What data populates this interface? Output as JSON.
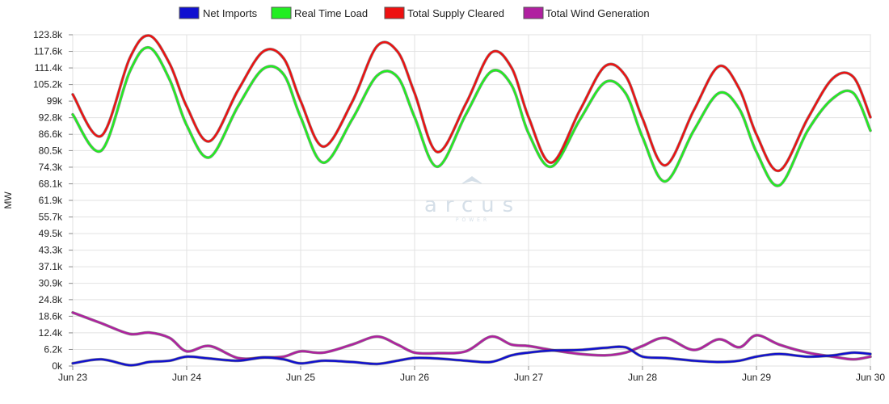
{
  "watermark": {
    "brand": "arcus",
    "sub": "POWER"
  },
  "chart_data": {
    "type": "line",
    "ylabel": "MW",
    "xlabel": "",
    "ylim": [
      0,
      123800
    ],
    "yticks": [
      "0k",
      "6.2k",
      "12.4k",
      "18.6k",
      "24.8k",
      "30.9k",
      "37.1k",
      "43.3k",
      "49.5k",
      "55.7k",
      "61.9k",
      "68.1k",
      "74.3k",
      "80.5k",
      "86.6k",
      "92.8k",
      "99k",
      "105.2k",
      "111.4k",
      "117.6k",
      "123.8k"
    ],
    "ytick_values": [
      0,
      6200,
      12400,
      18600,
      24800,
      30900,
      37100,
      43300,
      49500,
      55700,
      61900,
      68100,
      74300,
      80500,
      86600,
      92800,
      99000,
      105200,
      111400,
      117600,
      123800
    ],
    "xticks": [
      "Jun 23",
      "Jun 24",
      "Jun 25",
      "Jun 26",
      "Jun 27",
      "Jun 28",
      "Jun 29",
      "Jun 30"
    ],
    "xlim_days": [
      23,
      30
    ],
    "grid": true,
    "legend_position": "top-center",
    "x": [
      23.0,
      23.25,
      23.5,
      23.67,
      23.85,
      24.0,
      24.2,
      24.45,
      24.67,
      24.85,
      25.0,
      25.2,
      25.45,
      25.67,
      25.85,
      26.0,
      26.2,
      26.45,
      26.67,
      26.85,
      27.0,
      27.2,
      27.45,
      27.67,
      27.85,
      28.0,
      28.2,
      28.45,
      28.67,
      28.85,
      29.0,
      29.2,
      29.45,
      29.67,
      29.85,
      30.0
    ],
    "series": [
      {
        "name": "Net Imports",
        "color": "#1010d0",
        "values": [
          1000,
          2500,
          300,
          1500,
          2000,
          3500,
          2800,
          2000,
          3200,
          2500,
          1000,
          2000,
          1500,
          800,
          2000,
          3000,
          2800,
          2000,
          1500,
          4000,
          5000,
          5800,
          6000,
          6800,
          7000,
          3500,
          3000,
          2000,
          1500,
          2000,
          3500,
          4500,
          3500,
          4000,
          5000,
          4500
        ]
      },
      {
        "name": "Real Time Load",
        "color": "#22ee22",
        "values": [
          94000,
          80500,
          110000,
          119000,
          107000,
          90000,
          78000,
          97000,
          111000,
          109000,
          93000,
          76000,
          92000,
          108500,
          108000,
          93000,
          74500,
          94000,
          110000,
          105000,
          87000,
          74500,
          92000,
          106000,
          102000,
          85500,
          69000,
          88000,
          102000,
          96000,
          80000,
          67500,
          88000,
          100000,
          102000,
          88000
        ]
      },
      {
        "name": "Total Supply Cleared",
        "color": "#ee1111",
        "values": [
          101500,
          86000,
          115000,
          123500,
          113000,
          97000,
          84000,
          103000,
          117500,
          115000,
          99000,
          82000,
          98500,
          119500,
          117500,
          102000,
          80000,
          98000,
          117000,
          111500,
          93000,
          76000,
          95500,
          112000,
          108500,
          92500,
          75000,
          95500,
          112000,
          103500,
          86500,
          73000,
          92500,
          107500,
          108000,
          93000
        ]
      },
      {
        "name": "Total Wind Generation",
        "color": "#b020a0",
        "values": [
          20000,
          16000,
          12000,
          12500,
          10500,
          5500,
          7500,
          3000,
          3200,
          3500,
          5500,
          5000,
          8000,
          11000,
          8000,
          5000,
          4800,
          5500,
          11000,
          8000,
          7500,
          6000,
          4500,
          4000,
          5000,
          7500,
          10500,
          6000,
          10000,
          7000,
          11500,
          8000,
          5000,
          3500,
          2500,
          3500
        ]
      }
    ]
  }
}
